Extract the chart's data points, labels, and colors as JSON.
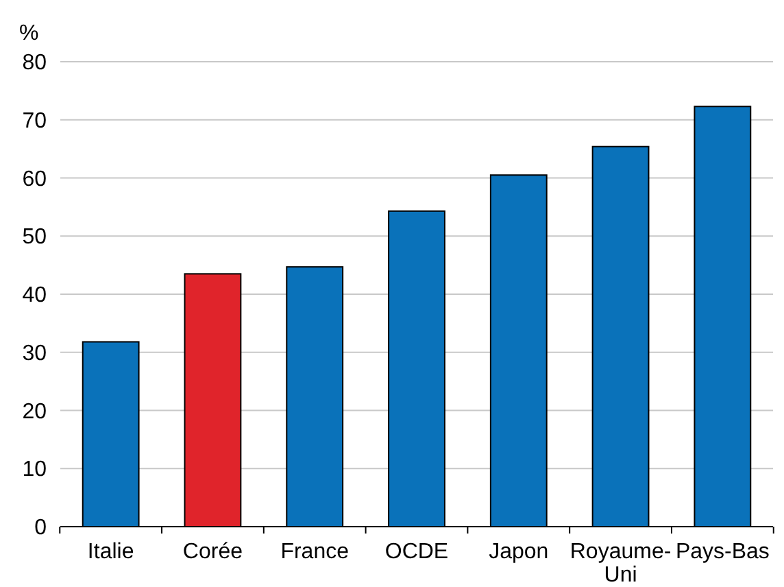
{
  "chart_data": {
    "type": "bar",
    "ylabel": "%",
    "categories": [
      "Italie",
      "Corée",
      "France",
      "OCDE",
      "Japon",
      "Royaume-Uni",
      "Pays-Bas"
    ],
    "values": [
      31.8,
      43.5,
      44.7,
      54.3,
      60.5,
      65.4,
      72.3
    ],
    "colors": [
      "#0a72ba",
      "#e0242b",
      "#0a72ba",
      "#0a72ba",
      "#0a72ba",
      "#0a72ba",
      "#0a72ba"
    ],
    "ylim": [
      0,
      80
    ],
    "yticks": [
      0,
      10,
      20,
      30,
      40,
      50,
      60,
      70,
      80
    ],
    "grid": "y"
  }
}
